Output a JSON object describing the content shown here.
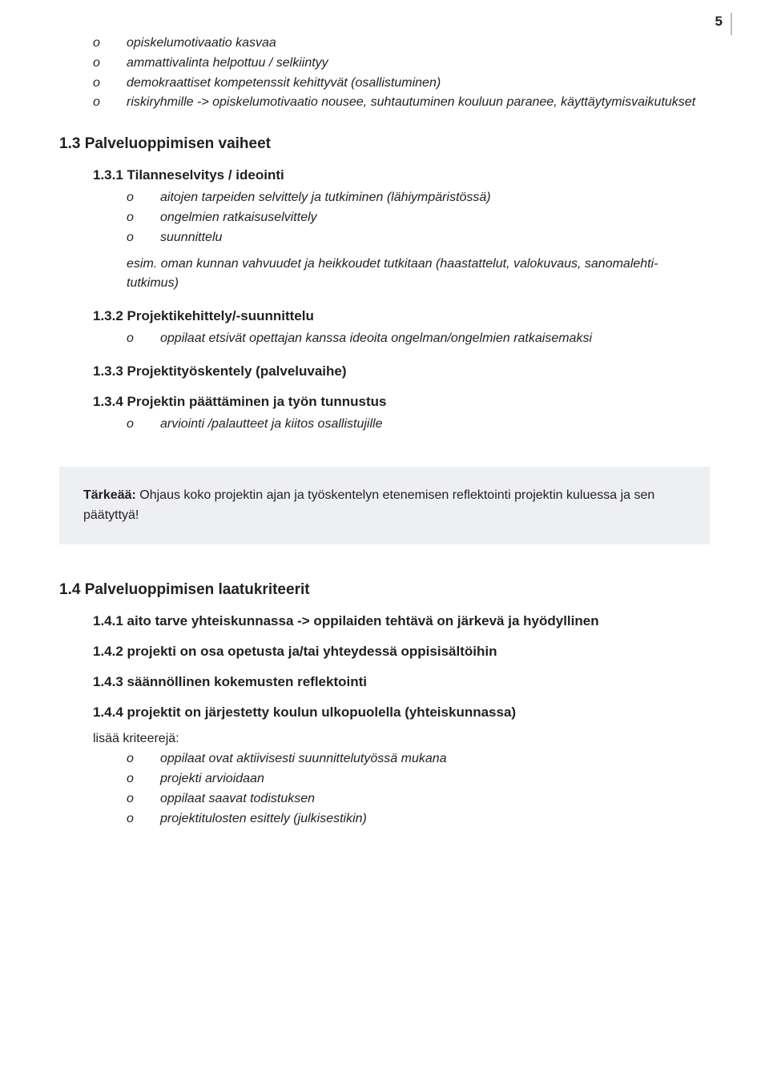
{
  "page_number": "5",
  "top_list": [
    "opiskelumotivaatio kasvaa",
    "ammattivalinta helpottuu / selkiintyy",
    "demokraattiset kompetenssit kehittyvät (osallistuminen)",
    "riskiryhmille -> opiskelumotivaatio nousee, suhtautuminen kouluun paranee, käyttäytymisvaikutukset"
  ],
  "h1_3": "1.3  Palveluoppimisen vaiheet",
  "h1_3_1": "1.3.1  Tilanneselvitys / ideointi",
  "list_1_3_1": [
    "aitojen tarpeiden selvittely ja tutkiminen (lähiympäristössä)",
    "ongelmien ratkaisuselvittely",
    "suunnittelu"
  ],
  "p_1_3_1": "esim. oman kunnan vahvuudet ja heikkoudet tutkitaan (haastattelut, valokuvaus, sanomalehti-tutkimus)",
  "h1_3_2": "1.3.2  Projektikehittely/-suunnittelu",
  "list_1_3_2": [
    "oppilaat etsivät opettajan kanssa ideoita ongelman/ongelmien ratkaisemaksi"
  ],
  "h1_3_3": "1.3.3  Projektityöskentely (palveluvaihe)",
  "h1_3_4": "1.3.4  Projektin päättäminen ja työn tunnustus",
  "list_1_3_4": [
    "arviointi /palautteet ja kiitos osallistujille"
  ],
  "callout_bold": "Tärkeää:",
  "callout_text": " Ohjaus koko projektin ajan ja työskentelyn etenemisen reflektointi projektin kuluessa ja sen päätyttyä!",
  "h1_4": "1.4  Palveluoppimisen laatukriteerit",
  "h1_4_1": "1.4.1  aito tarve yhteiskunnassa -> oppilaiden tehtävä on järkevä ja hyödyllinen",
  "h1_4_2": "1.4.2  projekti on osa opetusta ja/tai yhteydessä oppisisältöihin",
  "h1_4_3": "1.4.3  säännöllinen kokemusten reflektointi",
  "h1_4_4": "1.4.4  projektit on järjestetty koulun ulkopuolella (yhteiskunnassa)",
  "p_criteria": "lisää kriteerejä:",
  "list_criteria": [
    "oppilaat ovat aktiivisesti suunnittelutyössä mukana",
    "projekti arvioidaan",
    "oppilaat saavat todistuksen",
    "projektitulosten esittely (julkisestikin)"
  ]
}
